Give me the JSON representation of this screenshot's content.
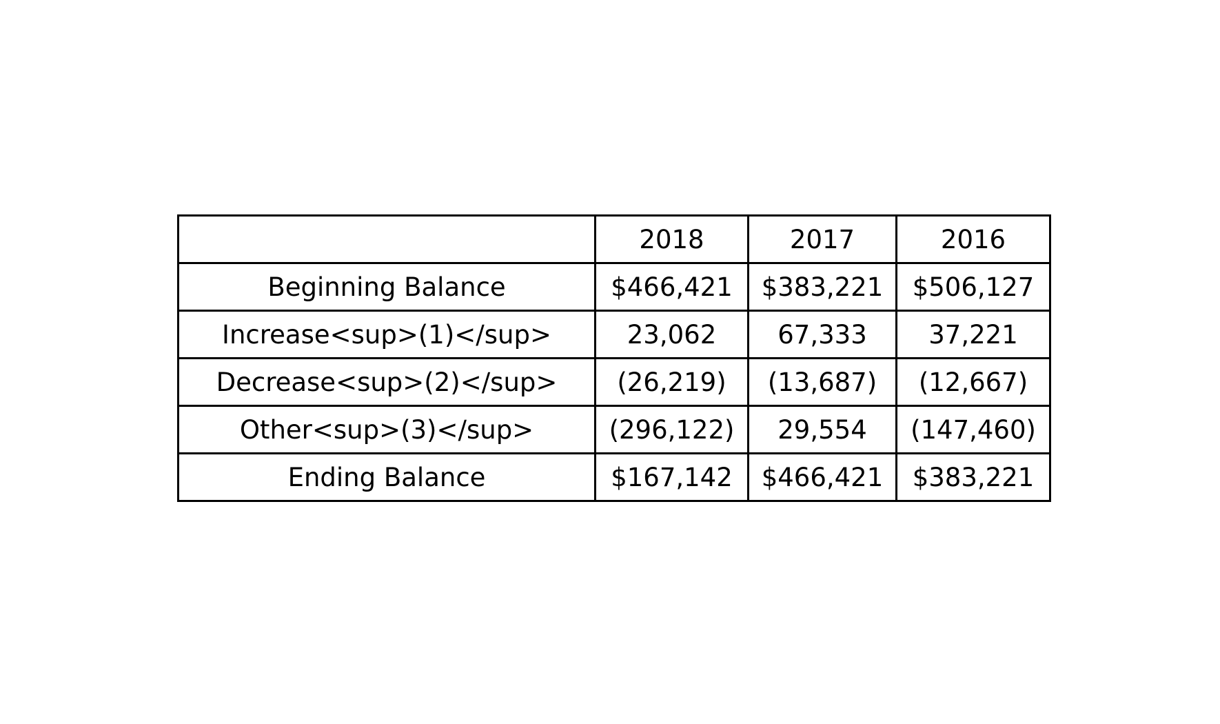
{
  "table": {
    "header": {
      "corner": "",
      "columns": [
        "2018",
        "2017",
        "2016"
      ]
    },
    "rows": [
      {
        "label": "Beginning Balance",
        "values": [
          "$466,421",
          "$383,221",
          "$506,127"
        ]
      },
      {
        "label": "Increase<sup>(1)</sup>",
        "values": [
          "23,062",
          "67,333",
          "37,221"
        ]
      },
      {
        "label": "Decrease<sup>(2)</sup>",
        "values": [
          "(26,219)",
          "(13,687)",
          "(12,667)"
        ]
      },
      {
        "label": "Other<sup>(3)</sup>",
        "values": [
          "(296,122)",
          "29,554",
          "(147,460)"
        ]
      },
      {
        "label": "Ending Balance",
        "values": [
          "$167,142",
          "$466,421",
          "$383,221"
        ]
      }
    ]
  }
}
